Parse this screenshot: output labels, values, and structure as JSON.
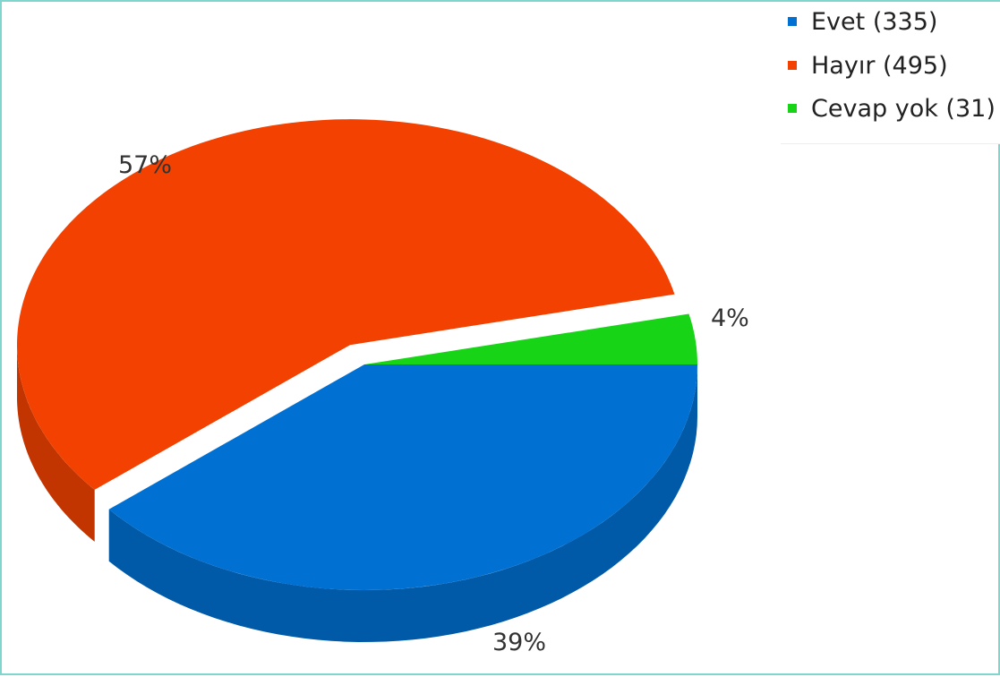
{
  "chart_data": {
    "type": "pie",
    "categories": [
      "Evet (335)",
      "Hayır (495)",
      "Cevap yok (31)"
    ],
    "values": [
      335,
      495,
      31
    ],
    "percent_labels": [
      "39%",
      "57%",
      "4%"
    ],
    "colors": [
      "#0070d2",
      "#f24100",
      "#17d417"
    ],
    "legend": "top-right",
    "three_d": true,
    "exploded": true
  }
}
